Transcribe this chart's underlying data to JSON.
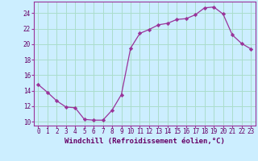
{
  "x": [
    0,
    1,
    2,
    3,
    4,
    5,
    6,
    7,
    8,
    9,
    10,
    11,
    12,
    13,
    14,
    15,
    16,
    17,
    18,
    19,
    20,
    21,
    22,
    23
  ],
  "y": [
    14.8,
    13.8,
    12.7,
    11.9,
    11.8,
    10.3,
    10.2,
    10.2,
    11.5,
    13.5,
    19.5,
    21.4,
    21.9,
    22.5,
    22.7,
    23.2,
    23.3,
    23.8,
    24.7,
    24.8,
    23.9,
    21.2,
    20.1,
    19.4
  ],
  "line_color": "#993399",
  "marker_color": "#993399",
  "bg_color": "#cceeff",
  "grid_color": "#aaddcc",
  "axis_color": "#993399",
  "xlabel": "Windchill (Refroidissement éolien,°C)",
  "ylim": [
    9.5,
    25.5
  ],
  "xlim": [
    -0.5,
    23.5
  ],
  "yticks": [
    10,
    12,
    14,
    16,
    18,
    20,
    22,
    24
  ],
  "xticks": [
    0,
    1,
    2,
    3,
    4,
    5,
    6,
    7,
    8,
    9,
    10,
    11,
    12,
    13,
    14,
    15,
    16,
    17,
    18,
    19,
    20,
    21,
    22,
    23
  ],
  "font_color": "#660066",
  "tick_fontsize": 5.5,
  "xlabel_fontsize": 6.5
}
